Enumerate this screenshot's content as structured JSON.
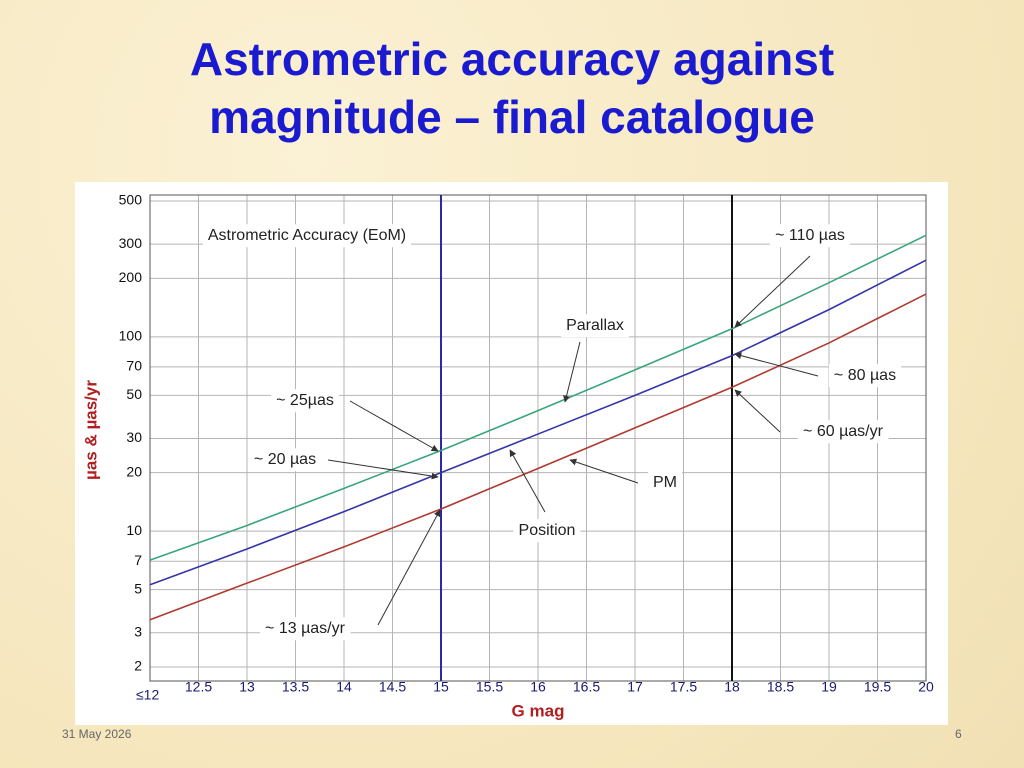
{
  "slide": {
    "title": "Astrometric accuracy against magnitude – final catalogue",
    "date": "31 May 2026",
    "page": "6"
  },
  "chart_data": {
    "type": "line",
    "title": "Astrometric Accuracy (EoM)",
    "x_label": "G mag",
    "y_label": "µas & µas/yr",
    "x": [
      12,
      13,
      14,
      15,
      16,
      17,
      18,
      19,
      20
    ],
    "series": [
      {
        "name": "Parallax",
        "color": "#3aa57a",
        "values": [
          7.1,
          10.7,
          16.6,
          26,
          41.7,
          67.6,
          110,
          190,
          333
        ]
      },
      {
        "name": "Position",
        "color": "#3535a8",
        "values": [
          5.3,
          8.1,
          12.6,
          20,
          31.6,
          50,
          80,
          138,
          248
        ]
      },
      {
        "name": "PM",
        "color": "#b03a30",
        "values": [
          3.5,
          5.4,
          8.3,
          13,
          21,
          34,
          55,
          93,
          166
        ]
      }
    ],
    "vlines": [
      {
        "x": 15,
        "color": "#2a2aa8"
      },
      {
        "x": 18,
        "color": "#111111"
      }
    ],
    "annotations": [
      "~ 25µas",
      "~ 20 µas",
      "~ 13 µas/yr",
      "~ 110 µas",
      "~ 80 µas",
      "~ 60 µas/yr"
    ],
    "xlim": [
      12,
      20
    ],
    "ylim": [
      2,
      500
    ],
    "yscale": "log",
    "grid": true,
    "xticks": [
      {
        "value": 12,
        "label": "≤12"
      },
      12.5,
      13,
      13.5,
      14,
      14.5,
      15,
      15.5,
      16,
      16.5,
      17,
      17.5,
      18,
      18.5,
      19,
      19.5,
      20
    ],
    "yticks": [
      2,
      3,
      5,
      7,
      10,
      20,
      30,
      50,
      70,
      100,
      200,
      300,
      500
    ]
  }
}
